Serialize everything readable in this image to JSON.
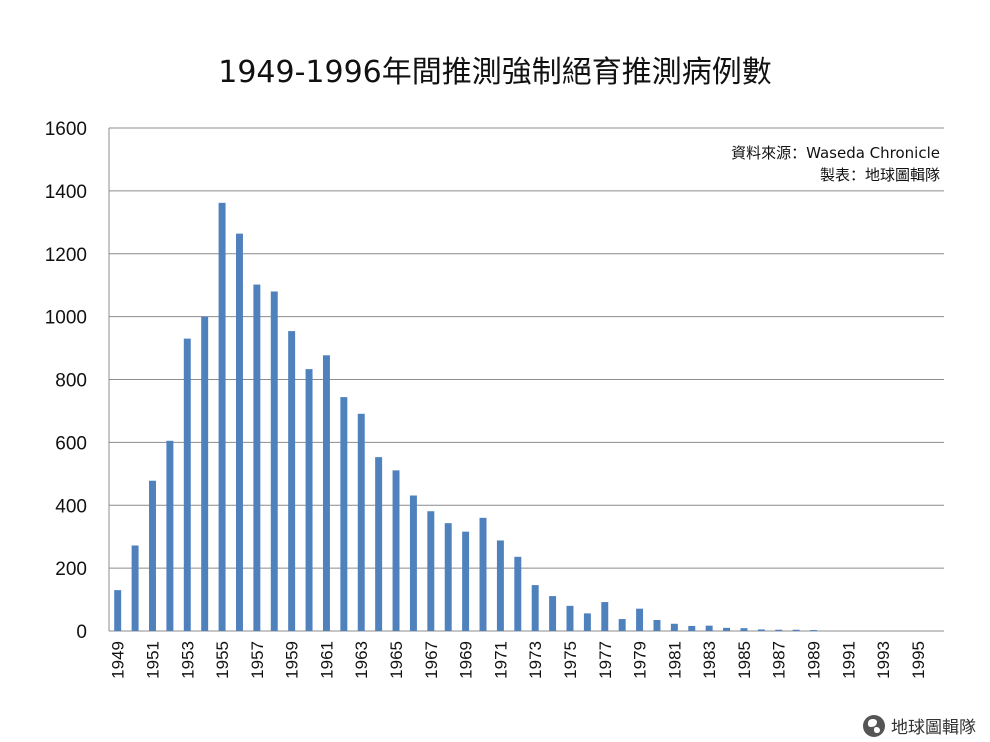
{
  "chart_data": {
    "type": "bar",
    "title": "1949-1996年間推測強制絕育推測病例數",
    "source_line": "資料來源：Waseda Chronicle",
    "maker_line": "製表：地球圖輯隊",
    "xlabel": "",
    "ylabel": "",
    "ylim": [
      0,
      1600
    ],
    "yticks": [
      0,
      200,
      400,
      600,
      800,
      1000,
      1200,
      1400,
      1600
    ],
    "grid": true,
    "legend": "none",
    "bar_color": "#4f81bd",
    "categories": [
      "1949",
      "1950",
      "1951",
      "1952",
      "1953",
      "1954",
      "1955",
      "1956",
      "1957",
      "1958",
      "1959",
      "1960",
      "1961",
      "1962",
      "1963",
      "1964",
      "1965",
      "1966",
      "1967",
      "1968",
      "1969",
      "1970",
      "1971",
      "1972",
      "1973",
      "1974",
      "1975",
      "1976",
      "1977",
      "1978",
      "1979",
      "1980",
      "1981",
      "1982",
      "1983",
      "1984",
      "1985",
      "1986",
      "1987",
      "1988",
      "1989",
      "1990",
      "1991",
      "1992",
      "1993",
      "1994",
      "1995",
      "1996"
    ],
    "tick_labels": [
      "1949",
      "1951",
      "1953",
      "1955",
      "1957",
      "1959",
      "1961",
      "1963",
      "1965",
      "1967",
      "1969",
      "1971",
      "1973",
      "1975",
      "1977",
      "1979",
      "1981",
      "1983",
      "1985",
      "1987",
      "1989",
      "1991",
      "1993",
      "1995"
    ],
    "values": [
      130,
      272,
      478,
      605,
      930,
      1000,
      1362,
      1264,
      1102,
      1080,
      954,
      833,
      877,
      744,
      691,
      553,
      511,
      431,
      381,
      343,
      316,
      360,
      288,
      236,
      146,
      111,
      80,
      56,
      92,
      38,
      71,
      35,
      23,
      16,
      17,
      10,
      9,
      5,
      4,
      4,
      3,
      0,
      0,
      0,
      0,
      0,
      0,
      0
    ]
  },
  "watermark": {
    "text": "地球圖輯隊",
    "icon": "globe-icon"
  }
}
